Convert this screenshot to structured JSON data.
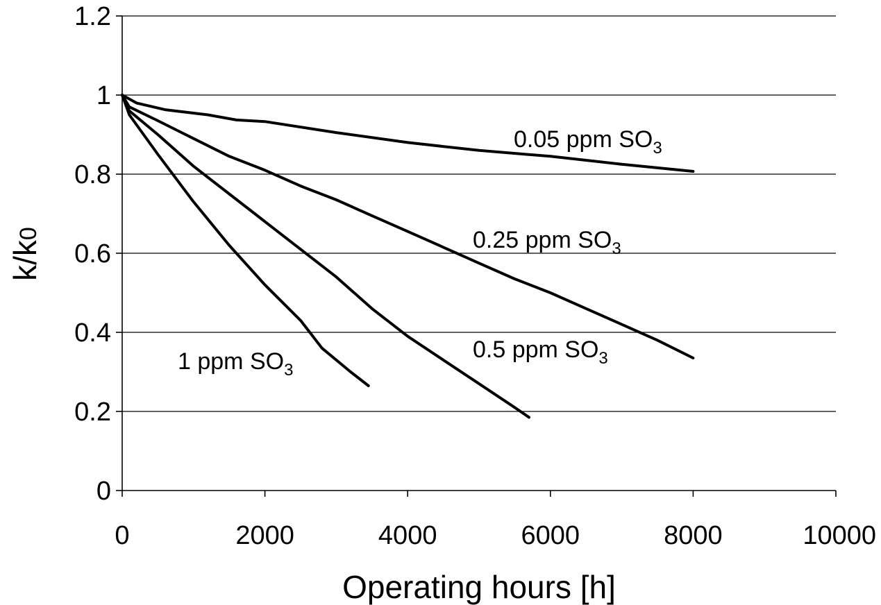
{
  "chart_data": {
    "type": "line",
    "title": "",
    "xlabel": "Operating hours [h]",
    "ylabel_main": "k/k",
    "ylabel_sub": "0",
    "xlim": [
      0,
      10000
    ],
    "ylim": [
      0,
      1.2
    ],
    "x_ticks": [
      "0",
      "2000",
      "4000",
      "6000",
      "8000",
      "10000"
    ],
    "y_ticks": [
      "0",
      "0.2",
      "0.4",
      "0.6",
      "0.8",
      "1",
      "1.2"
    ],
    "grid": "horizontal",
    "legend": "none",
    "line_color": "#000000",
    "series": [
      {
        "name_main": "0.05 ppm SO",
        "name_sub": "3",
        "x": [
          0,
          200,
          600,
          1200,
          1600,
          2000,
          3000,
          4000,
          5000,
          6000,
          7000,
          8000
        ],
        "y": [
          1.0,
          0.98,
          0.963,
          0.95,
          0.937,
          0.933,
          0.905,
          0.88,
          0.86,
          0.845,
          0.825,
          0.807
        ]
      },
      {
        "name_main": "0.25 ppm SO",
        "name_sub": "3",
        "x": [
          0,
          100,
          500,
          1000,
          1500,
          2000,
          2500,
          3000,
          3500,
          4000,
          4500,
          5000,
          5500,
          6000,
          6500,
          7000,
          7500,
          8000
        ],
        "y": [
          1.0,
          0.97,
          0.935,
          0.89,
          0.845,
          0.81,
          0.77,
          0.735,
          0.695,
          0.655,
          0.615,
          0.575,
          0.535,
          0.5,
          0.46,
          0.42,
          0.38,
          0.335
        ]
      },
      {
        "name_main": "0.5 ppm SO",
        "name_sub": "3",
        "x": [
          0,
          100,
          500,
          1000,
          1500,
          2000,
          2500,
          3000,
          3500,
          4000,
          4500,
          5000,
          5500,
          5700
        ],
        "y": [
          1.0,
          0.96,
          0.9,
          0.82,
          0.75,
          0.68,
          0.61,
          0.54,
          0.46,
          0.39,
          0.33,
          0.27,
          0.21,
          0.185
        ]
      },
      {
        "name_main": "1 ppm SO",
        "name_sub": "3",
        "x": [
          0,
          100,
          500,
          1000,
          1500,
          2000,
          2500,
          2800,
          3200,
          3450
        ],
        "y": [
          1.0,
          0.95,
          0.85,
          0.73,
          0.62,
          0.52,
          0.43,
          0.36,
          0.3,
          0.265
        ]
      }
    ]
  }
}
